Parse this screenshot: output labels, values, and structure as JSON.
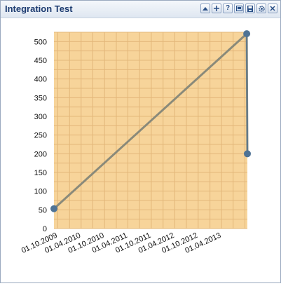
{
  "window": {
    "title": "Integration Test"
  },
  "toolbar": {
    "buttons": [
      {
        "name": "collapse-button",
        "icon": "triangle-up-icon"
      },
      {
        "name": "add-button",
        "icon": "plus-icon"
      },
      {
        "name": "help-button",
        "icon": "question-icon"
      },
      {
        "name": "image-button",
        "icon": "image-icon"
      },
      {
        "name": "save-button",
        "icon": "floppy-icon"
      },
      {
        "name": "settings-button",
        "icon": "gear-icon"
      },
      {
        "name": "close-button",
        "icon": "close-icon"
      }
    ],
    "help_label": "?"
  },
  "colors": {
    "plot_bg": "#f7d49a",
    "grid": "#e3b77a",
    "line": "#8a8a7a",
    "marker": "#4f7395",
    "axis_text": "#111111"
  },
  "chart_data": {
    "type": "line",
    "title": "",
    "xlabel": "",
    "ylabel": "",
    "ylim": [
      0,
      525
    ],
    "xlim": [
      "2009-09-01",
      "2013-10-20"
    ],
    "y_ticks": [
      0,
      50,
      100,
      150,
      200,
      250,
      300,
      350,
      400,
      450,
      500
    ],
    "x_ticks": [
      "01.10.2009",
      "01.04.2010",
      "01.10.2010",
      "01.04.2011",
      "01.10.2011",
      "01.04.2012",
      "01.10.2012",
      "01.04.2013"
    ],
    "grid": true,
    "series": [
      {
        "points": [
          {
            "x": "2009-09-01",
            "y": 53
          },
          {
            "x": "2013-10-15",
            "y": 521
          },
          {
            "x": "2013-10-20",
            "y": 200
          }
        ]
      }
    ]
  }
}
